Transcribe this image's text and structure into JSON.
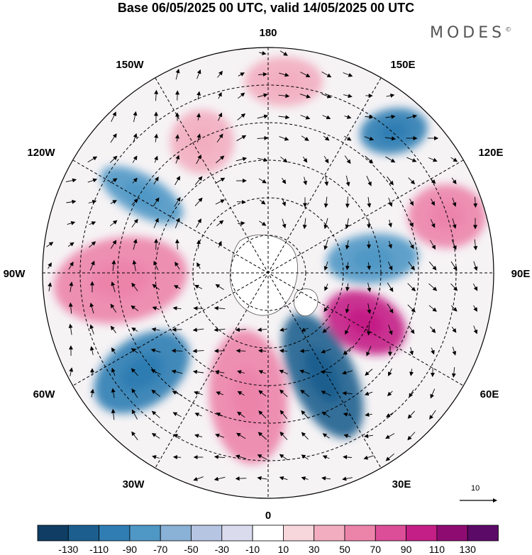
{
  "title": "Base 06/05/2025 00 UTC, valid 14/05/2025 00 UTC",
  "brand": {
    "text": "MODES",
    "mark": "©"
  },
  "longitude_labels": [
    {
      "key": "lon_180",
      "text": "180"
    },
    {
      "key": "lon_150w",
      "text": "150W"
    },
    {
      "key": "lon_150e",
      "text": "150E"
    },
    {
      "key": "lon_120w",
      "text": "120W"
    },
    {
      "key": "lon_120e",
      "text": "120E"
    },
    {
      "key": "lon_90w",
      "text": "90W"
    },
    {
      "key": "lon_90e",
      "text": "90E"
    },
    {
      "key": "lon_60w",
      "text": "60W"
    },
    {
      "key": "lon_60e",
      "text": "60E"
    },
    {
      "key": "lon_30w",
      "text": "30W"
    },
    {
      "key": "lon_30e",
      "text": "30E"
    },
    {
      "key": "lon_0",
      "text": "0"
    }
  ],
  "reference_vector": {
    "label": "10",
    "icon": "arrow-right-icon"
  },
  "colorbar": {
    "tick_labels": [
      "-130",
      "-110",
      "-90",
      "-70",
      "-50",
      "-30",
      "-10",
      "10",
      "30",
      "50",
      "70",
      "90",
      "110",
      "130"
    ],
    "colors": [
      "#0f3d63",
      "#1c5f8f",
      "#2f7db2",
      "#4f97c5",
      "#8ab1d6",
      "#b6c5e2",
      "#dadcee",
      "#ffffff",
      "#f7d6dc",
      "#f2aec0",
      "#ec84aa",
      "#dc4e97",
      "#c41f86",
      "#8e0c72",
      "#5c0a68"
    ]
  },
  "anomaly_features": [
    {
      "sign": "positive",
      "color": "#f2aec0",
      "level": 50
    },
    {
      "sign": "positive",
      "color": "#ec84aa",
      "level": 70
    },
    {
      "sign": "positive",
      "color": "#f2aec0",
      "level": 50
    },
    {
      "sign": "positive",
      "color": "#ec84aa",
      "level": 70
    },
    {
      "sign": "positive",
      "color": "#c41f86",
      "level": 110
    },
    {
      "sign": "positive",
      "color": "#ec84aa",
      "level": 70
    },
    {
      "sign": "negative",
      "color": "#2f7db2",
      "level": -90
    },
    {
      "sign": "negative",
      "color": "#4f97c5",
      "level": -70
    },
    {
      "sign": "negative",
      "color": "#4f97c5",
      "level": -70
    },
    {
      "sign": "negative",
      "color": "#2f7db2",
      "level": -90
    },
    {
      "sign": "negative",
      "color": "#1c5f8f",
      "level": -110
    }
  ]
}
